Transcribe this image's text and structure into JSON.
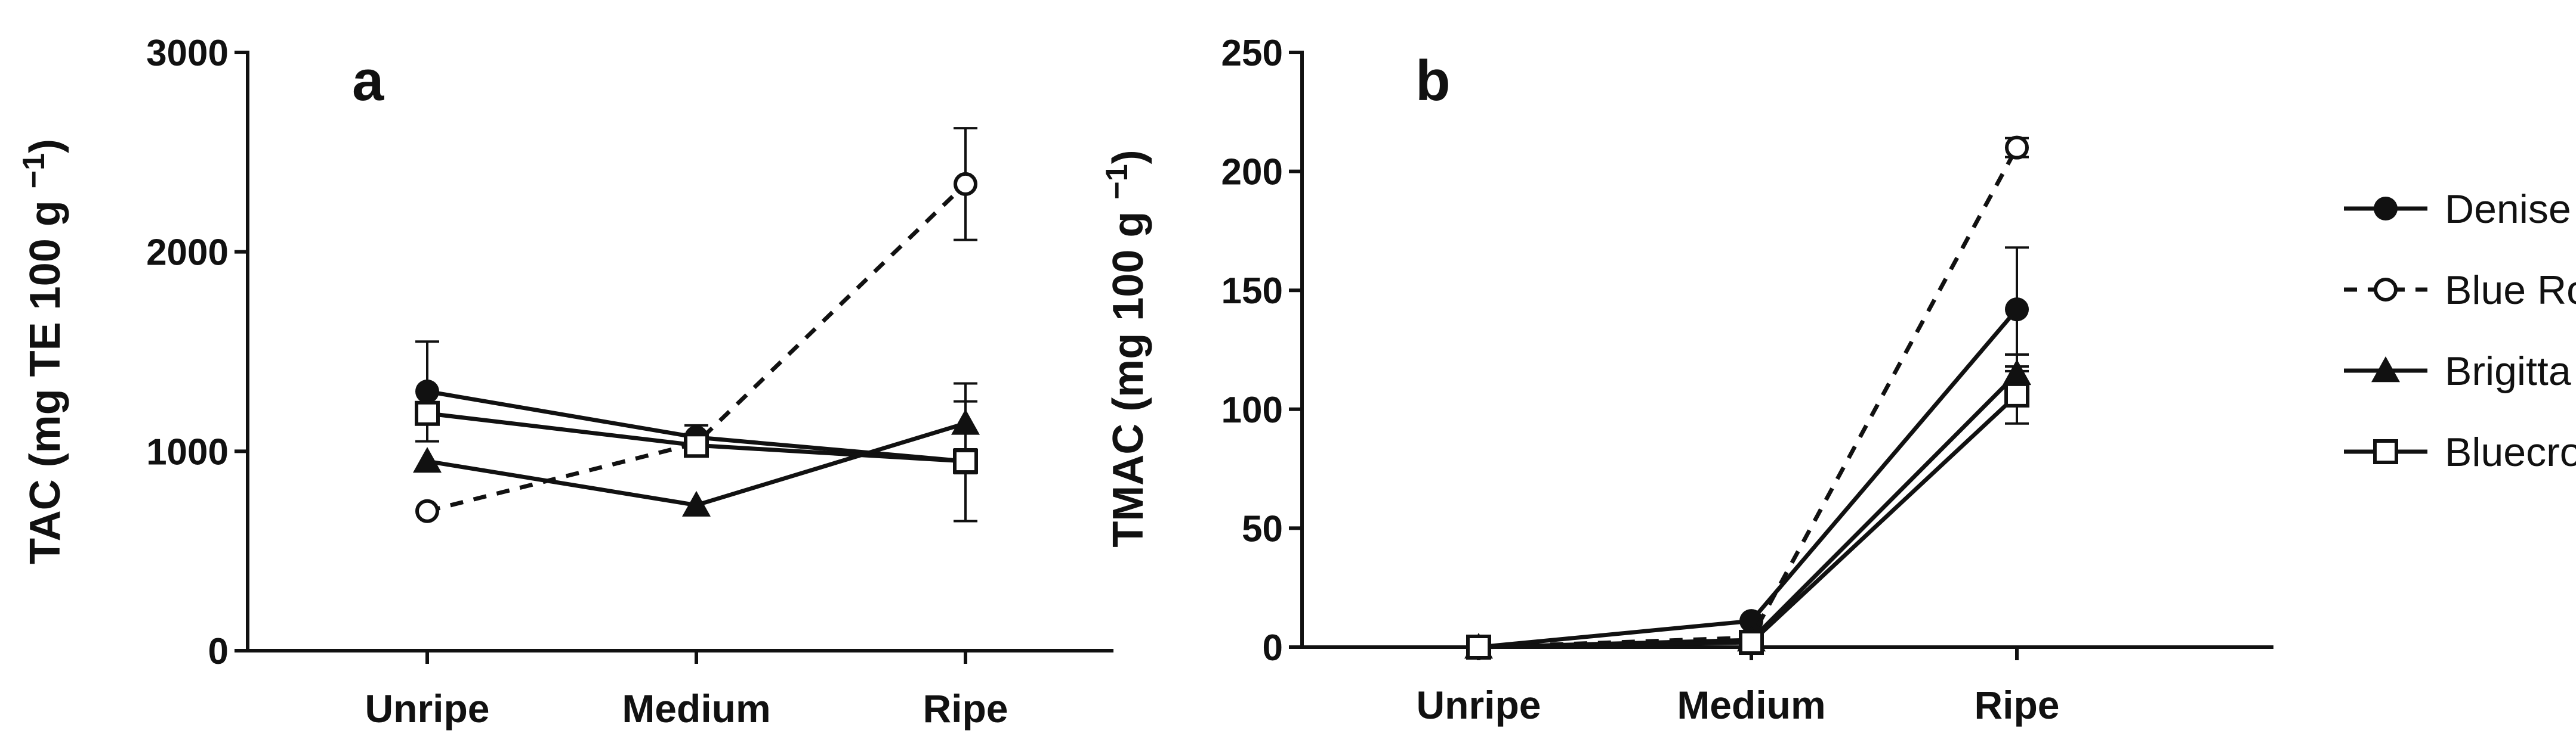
{
  "chart_data": [
    {
      "type": "line",
      "panel_label": "a",
      "title": "",
      "xlabel": "",
      "ylabel": "TAC  (mg TE 100 g",
      "ylabel_sup": "−1",
      "ylabel_end": ")",
      "categories": [
        "Unripe",
        "Medium",
        "Ripe"
      ],
      "ylim": [
        0,
        3000
      ],
      "yticks": [
        0,
        1000,
        2000,
        3000
      ],
      "series": [
        {
          "name": "Denise",
          "marker": "filled-circle",
          "dashed": false,
          "values": [
            1300,
            1070,
            950
          ],
          "errors": [
            250,
            60,
            60
          ]
        },
        {
          "name": "Blue Rose",
          "marker": "open-circle",
          "dashed": true,
          "values": [
            700,
            1040,
            2340
          ],
          "errors": [
            0,
            0,
            280
          ]
        },
        {
          "name": "Brigitta",
          "marker": "filled-triangle",
          "dashed": false,
          "values": [
            950,
            730,
            1140
          ],
          "errors": [
            0,
            0,
            200
          ]
        },
        {
          "name": "Bluecrop",
          "marker": "open-square",
          "dashed": false,
          "values": [
            1190,
            1030,
            950
          ],
          "errors": [
            0,
            40,
            300
          ]
        }
      ]
    },
    {
      "type": "line",
      "panel_label": "b",
      "title": "",
      "xlabel": "",
      "ylabel": "TMAC (mg 100 g",
      "ylabel_sup": "−1",
      "ylabel_end": ")",
      "categories": [
        "Unripe",
        "Medium",
        "Ripe"
      ],
      "ylim": [
        0,
        250
      ],
      "yticks": [
        0,
        50,
        100,
        150,
        200,
        250
      ],
      "series": [
        {
          "name": "Denise",
          "marker": "filled-circle",
          "dashed": false,
          "values": [
            0,
            11,
            142
          ],
          "errors": [
            0,
            0,
            26
          ]
        },
        {
          "name": "Blue Rose",
          "marker": "open-circle",
          "dashed": true,
          "values": [
            0,
            4,
            210
          ],
          "errors": [
            0,
            0,
            4
          ]
        },
        {
          "name": "Brigitta",
          "marker": "filled-triangle",
          "dashed": false,
          "values": [
            0,
            3,
            115
          ],
          "errors": [
            0,
            0,
            8
          ]
        },
        {
          "name": "Bluecrop",
          "marker": "open-square",
          "dashed": false,
          "values": [
            0,
            2,
            106
          ],
          "errors": [
            0,
            0,
            12
          ]
        }
      ]
    }
  ],
  "legend": {
    "placement": "right",
    "items": [
      {
        "name": "Denise",
        "marker": "filled-circle",
        "dashed": false
      },
      {
        "name": "Blue Rose",
        "marker": "open-circle",
        "dashed": true
      },
      {
        "name": "Brigitta",
        "marker": "filled-triangle",
        "dashed": false
      },
      {
        "name": "Bluecrop",
        "marker": "open-square",
        "dashed": false
      }
    ]
  },
  "colors": {
    "ink": "#111111",
    "background": "#ffffff"
  }
}
